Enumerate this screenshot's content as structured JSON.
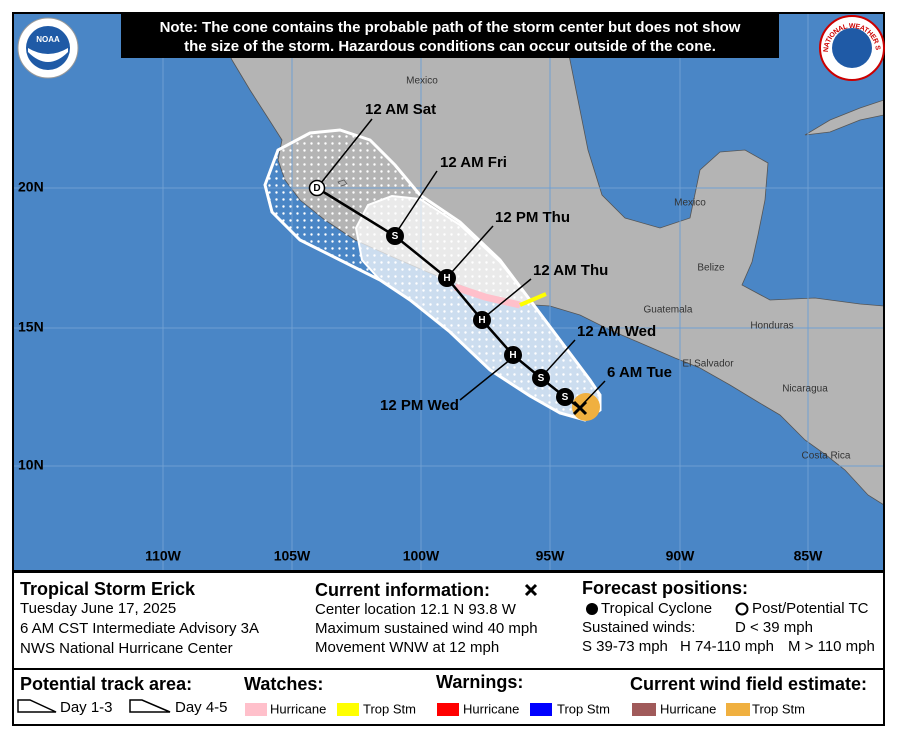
{
  "note": {
    "line1": "Note: The cone contains the probable path of the storm center but does not show",
    "line2": "the size of the storm. Hazardous conditions can occur outside of the cone."
  },
  "logos": {
    "noaa": "NOAA",
    "nws": "NATIONAL WEATHER SERVICE"
  },
  "map": {
    "lat_labels": [
      "20N",
      "15N",
      "10N"
    ],
    "lon_labels": [
      "110W",
      "105W",
      "100W",
      "95W",
      "90W",
      "85W"
    ],
    "places": [
      "Mexico",
      "Mexico",
      "Belize",
      "Guatemala",
      "Honduras",
      "El Salvador",
      "Nicaragua",
      "Costa Rica"
    ],
    "time_labels": [
      "12 AM Sat",
      "12 AM Fri",
      "12 PM Thu",
      "12 AM Thu",
      "12 AM Wed",
      "6 AM Tue",
      "12 PM Wed"
    ],
    "track_symbols": [
      "D",
      "S",
      "H",
      "H",
      "H",
      "S",
      "S"
    ]
  },
  "info": {
    "storm": "Tropical Storm Erick",
    "date": "Tuesday June 17, 2025",
    "advisory": "6 AM CST Intermediate Advisory 3A",
    "office": "NWS National Hurricane Center"
  },
  "current": {
    "title": "Current information:",
    "center": "Center location 12.1 N 93.8 W",
    "wind": "Maximum sustained wind 40 mph",
    "movement": "Movement WNW at 12 mph"
  },
  "forecast": {
    "title": "Forecast positions:",
    "tc": "Tropical Cyclone",
    "post": "Post/Potential TC",
    "winds_title": "Sustained winds:",
    "d": "D < 39 mph",
    "s": "S 39-73 mph",
    "h": "H 74-110 mph",
    "m": "M > 110 mph"
  },
  "legend": {
    "track_title": "Potential track area:",
    "day13": "Day 1-3",
    "day45": "Day 4-5",
    "watches_title": "Watches:",
    "watch_hurricane": "Hurricane",
    "watch_ts": "Trop Stm",
    "warnings_title": "Warnings:",
    "warning_hurricane": "Hurricane",
    "warning_ts": "Trop Stm",
    "wind_title": "Current wind field estimate:",
    "wind_hurricane": "Hurricane",
    "wind_ts": "Trop Stm"
  }
}
